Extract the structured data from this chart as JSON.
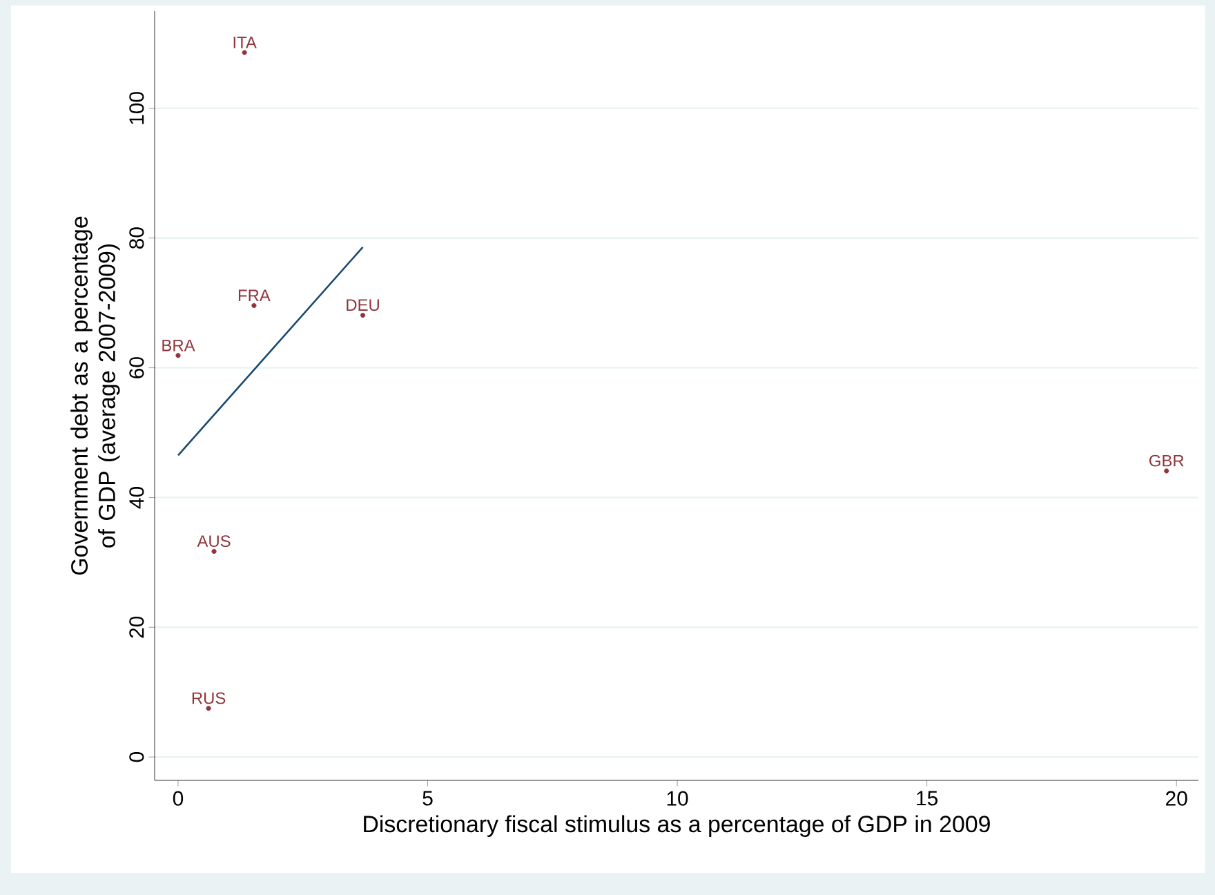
{
  "chart_data": {
    "type": "scatter",
    "xlabel": "Discretionary fiscal stimulus as a percentage of GDP in 2009",
    "ylabel": "Government debt as a percentage of GDP (average 2007-2009)",
    "xlim": [
      -0.47,
      20.44
    ],
    "ylim": [
      -3.6,
      115
    ],
    "xticks": [
      0,
      5,
      10,
      15,
      20
    ],
    "yticks": [
      0,
      20,
      40,
      60,
      80,
      100
    ],
    "grid": "y",
    "marker": "circle",
    "series": [
      {
        "color": "#90353b",
        "x": [
          1.33,
          1.52,
          3.7,
          0,
          19.8,
          0.72,
          0.61
        ],
        "values": [
          108.6,
          69.6,
          68.1,
          61.9,
          44.1,
          31.7,
          7.5
        ]
      },
      {
        "type": "line",
        "marker": "none",
        "color": "#1a476f",
        "x": [
          0,
          3.7
        ],
        "values": [
          46.5,
          78.6
        ]
      }
    ],
    "annotations": [
      {
        "text": "ITA",
        "x": 1.33,
        "y": 108.6
      },
      {
        "text": "FRA",
        "x": 1.52,
        "y": 69.6
      },
      {
        "text": "DEU",
        "x": 3.7,
        "y": 68.1
      },
      {
        "text": "BRA",
        "x": 0,
        "y": 61.9
      },
      {
        "text": "GBR",
        "x": 19.8,
        "y": 44.1
      },
      {
        "text": "AUS",
        "x": 0.72,
        "y": 31.7
      },
      {
        "text": "RUS",
        "x": 0.61,
        "y": 7.5
      }
    ]
  }
}
